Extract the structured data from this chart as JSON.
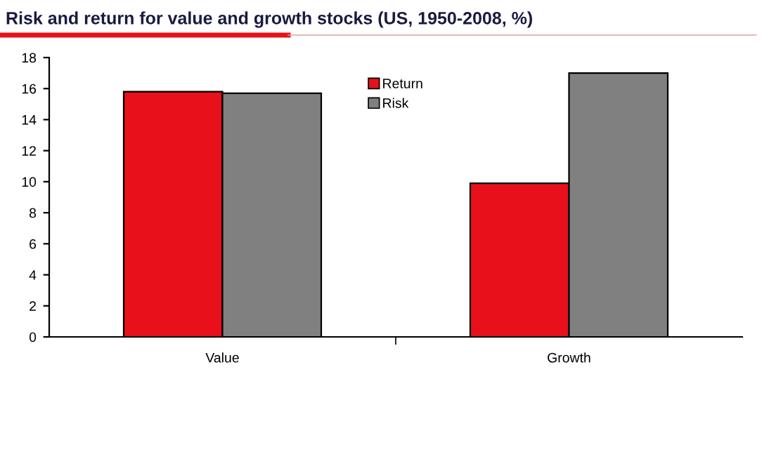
{
  "chart_data": {
    "type": "bar",
    "title": "Risk and return for value and growth stocks (US, 1950-2008, %)",
    "categories": [
      "Value",
      "Growth"
    ],
    "series": [
      {
        "name": "Return",
        "color": "#e8101a",
        "values": [
          15.8,
          9.9
        ]
      },
      {
        "name": "Risk",
        "color": "#808080",
        "values": [
          15.7,
          17.0
        ]
      }
    ],
    "ylim": [
      0,
      18
    ],
    "yticks": [
      0,
      2,
      4,
      6,
      8,
      10,
      12,
      14,
      16,
      18
    ],
    "grid": false,
    "legend": "top"
  }
}
